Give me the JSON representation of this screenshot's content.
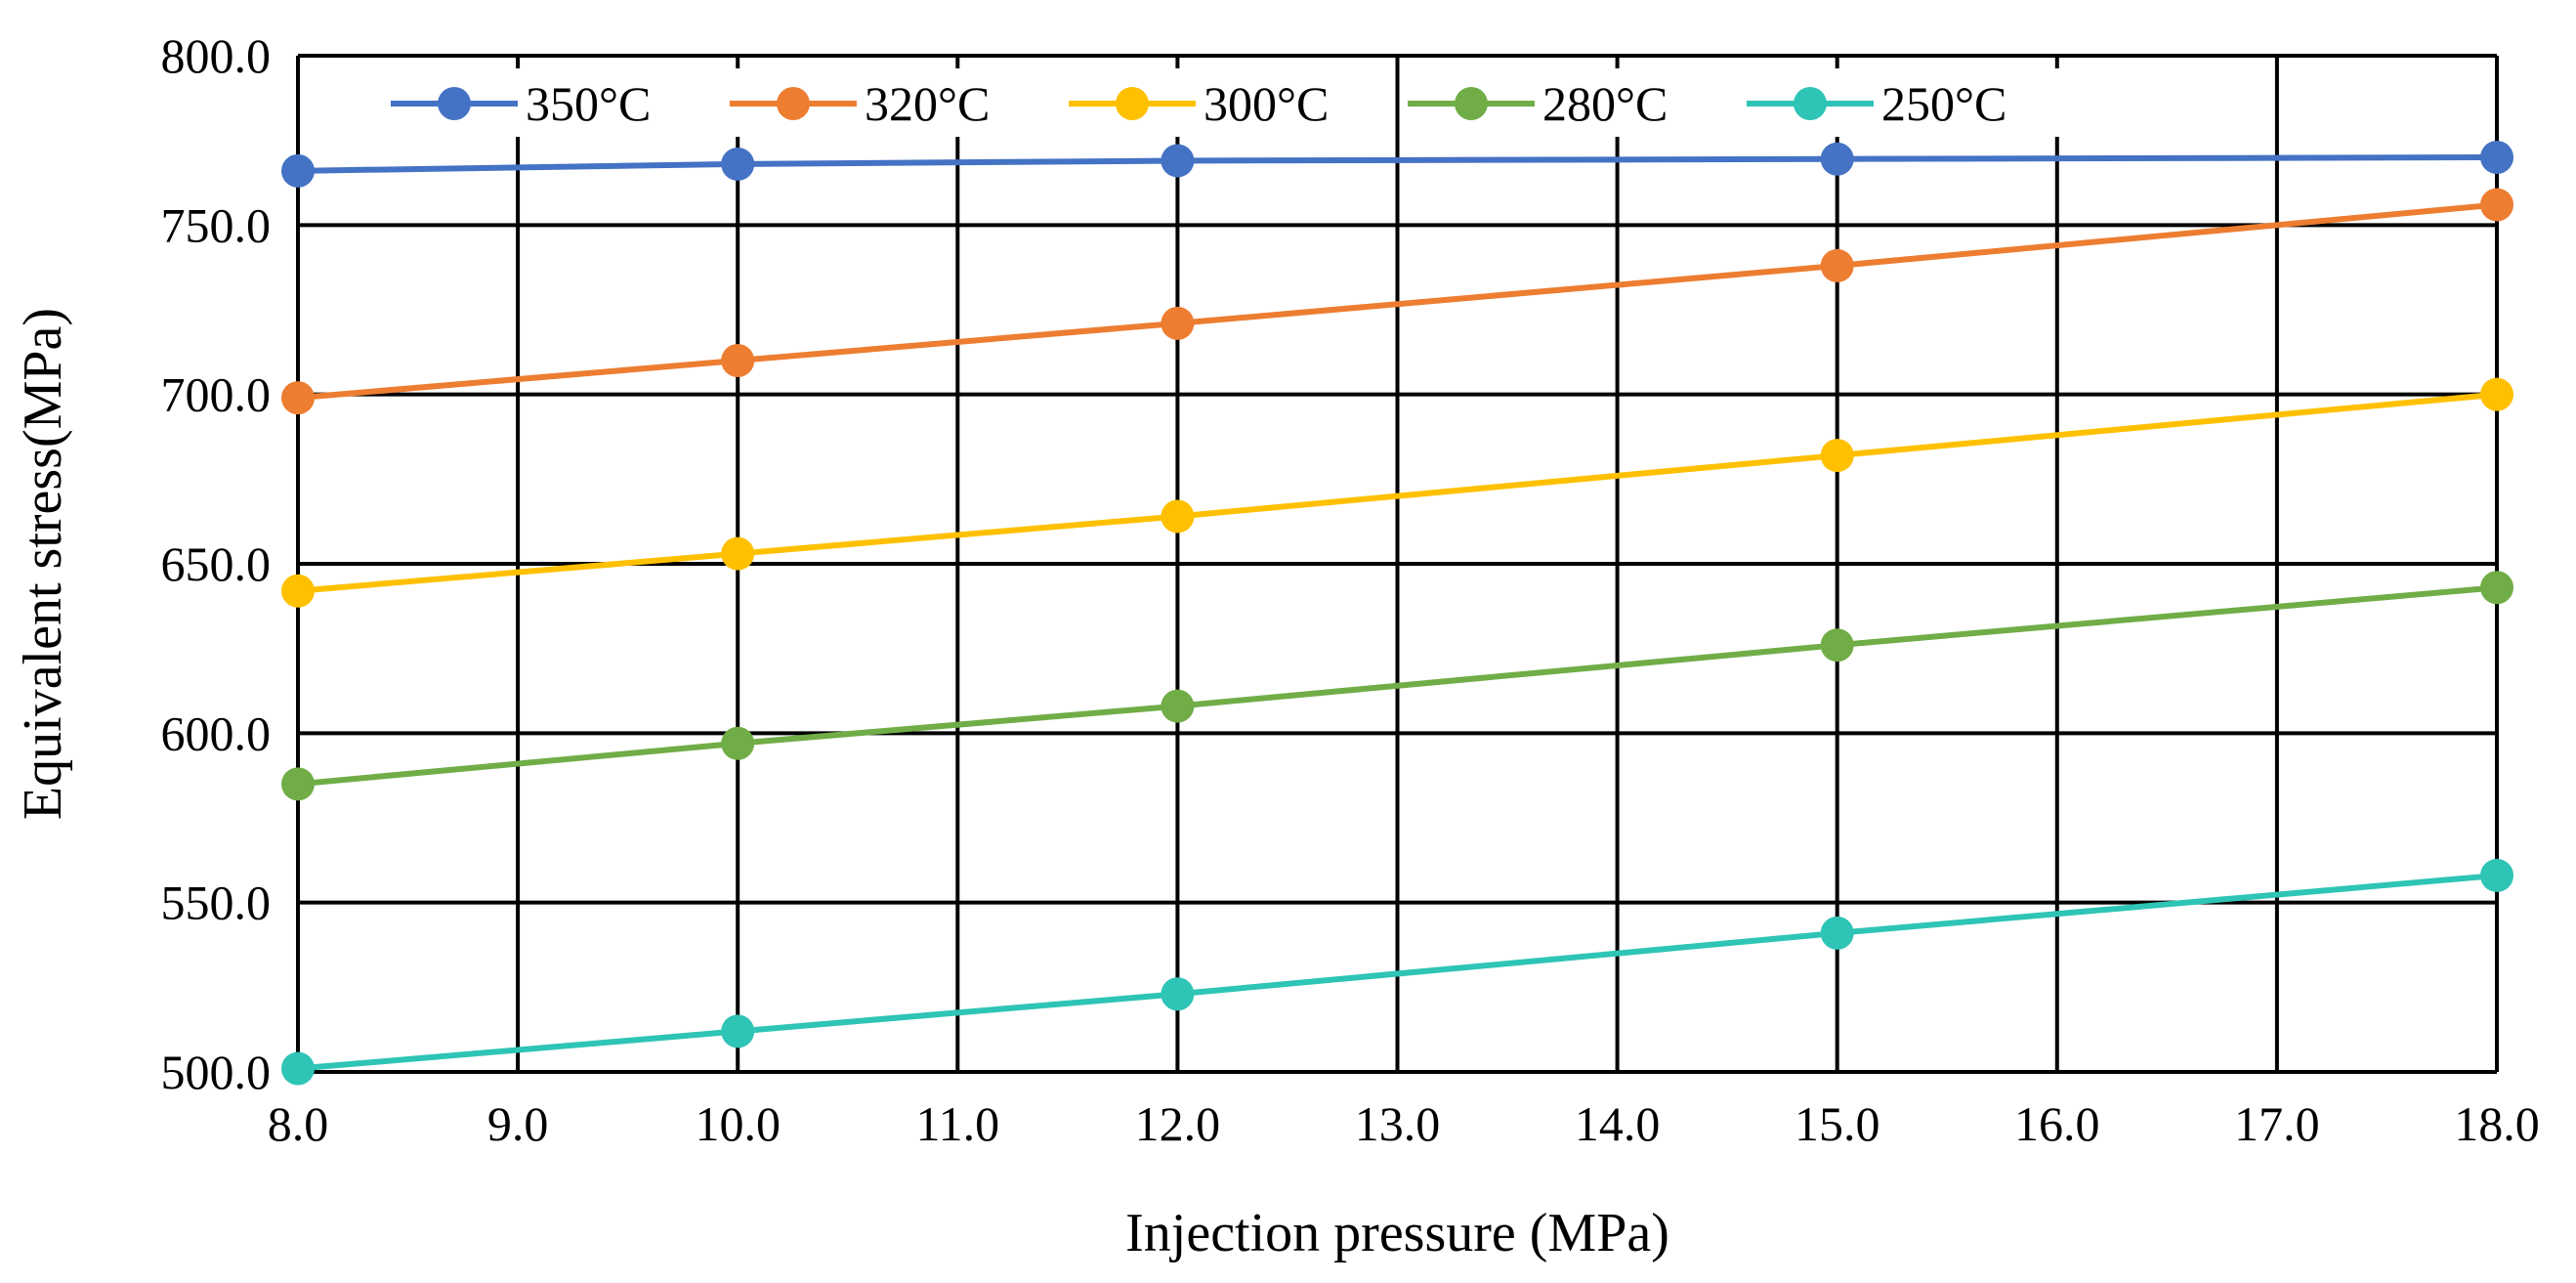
{
  "chart_data": {
    "type": "line",
    "title": "",
    "xlabel": "Injection pressure (MPa)",
    "ylabel": "Equivalent stress(MPa)",
    "xlim": [
      8.0,
      18.0
    ],
    "ylim": [
      500.0,
      800.0
    ],
    "x_ticks": [
      "8.0",
      "9.0",
      "10.0",
      "11.0",
      "12.0",
      "13.0",
      "14.0",
      "15.0",
      "16.0",
      "17.0",
      "18.0"
    ],
    "y_ticks": [
      "500.0",
      "550.0",
      "600.0",
      "650.0",
      "700.0",
      "750.0",
      "800.0"
    ],
    "grid": true,
    "legend_position": "top",
    "x": [
      8.0,
      10.0,
      12.0,
      15.0,
      18.0
    ],
    "series": [
      {
        "name": "350°C",
        "color": "#4472c4",
        "values": [
          766.0,
          768.0,
          769.0,
          769.5,
          770.0
        ]
      },
      {
        "name": "320°C",
        "color": "#ed7d31",
        "values": [
          699.0,
          710.0,
          721.0,
          738.0,
          756.0
        ]
      },
      {
        "name": "300°C",
        "color": "#ffc000",
        "values": [
          642.0,
          653.0,
          664.0,
          682.0,
          700.0
        ]
      },
      {
        "name": "280°C",
        "color": "#70ad47",
        "values": [
          585.0,
          597.0,
          608.0,
          626.0,
          643.0
        ]
      },
      {
        "name": "250°C",
        "color": "#2ec4b6",
        "values": [
          501.0,
          512.0,
          523.0,
          541.0,
          558.0
        ]
      }
    ]
  }
}
